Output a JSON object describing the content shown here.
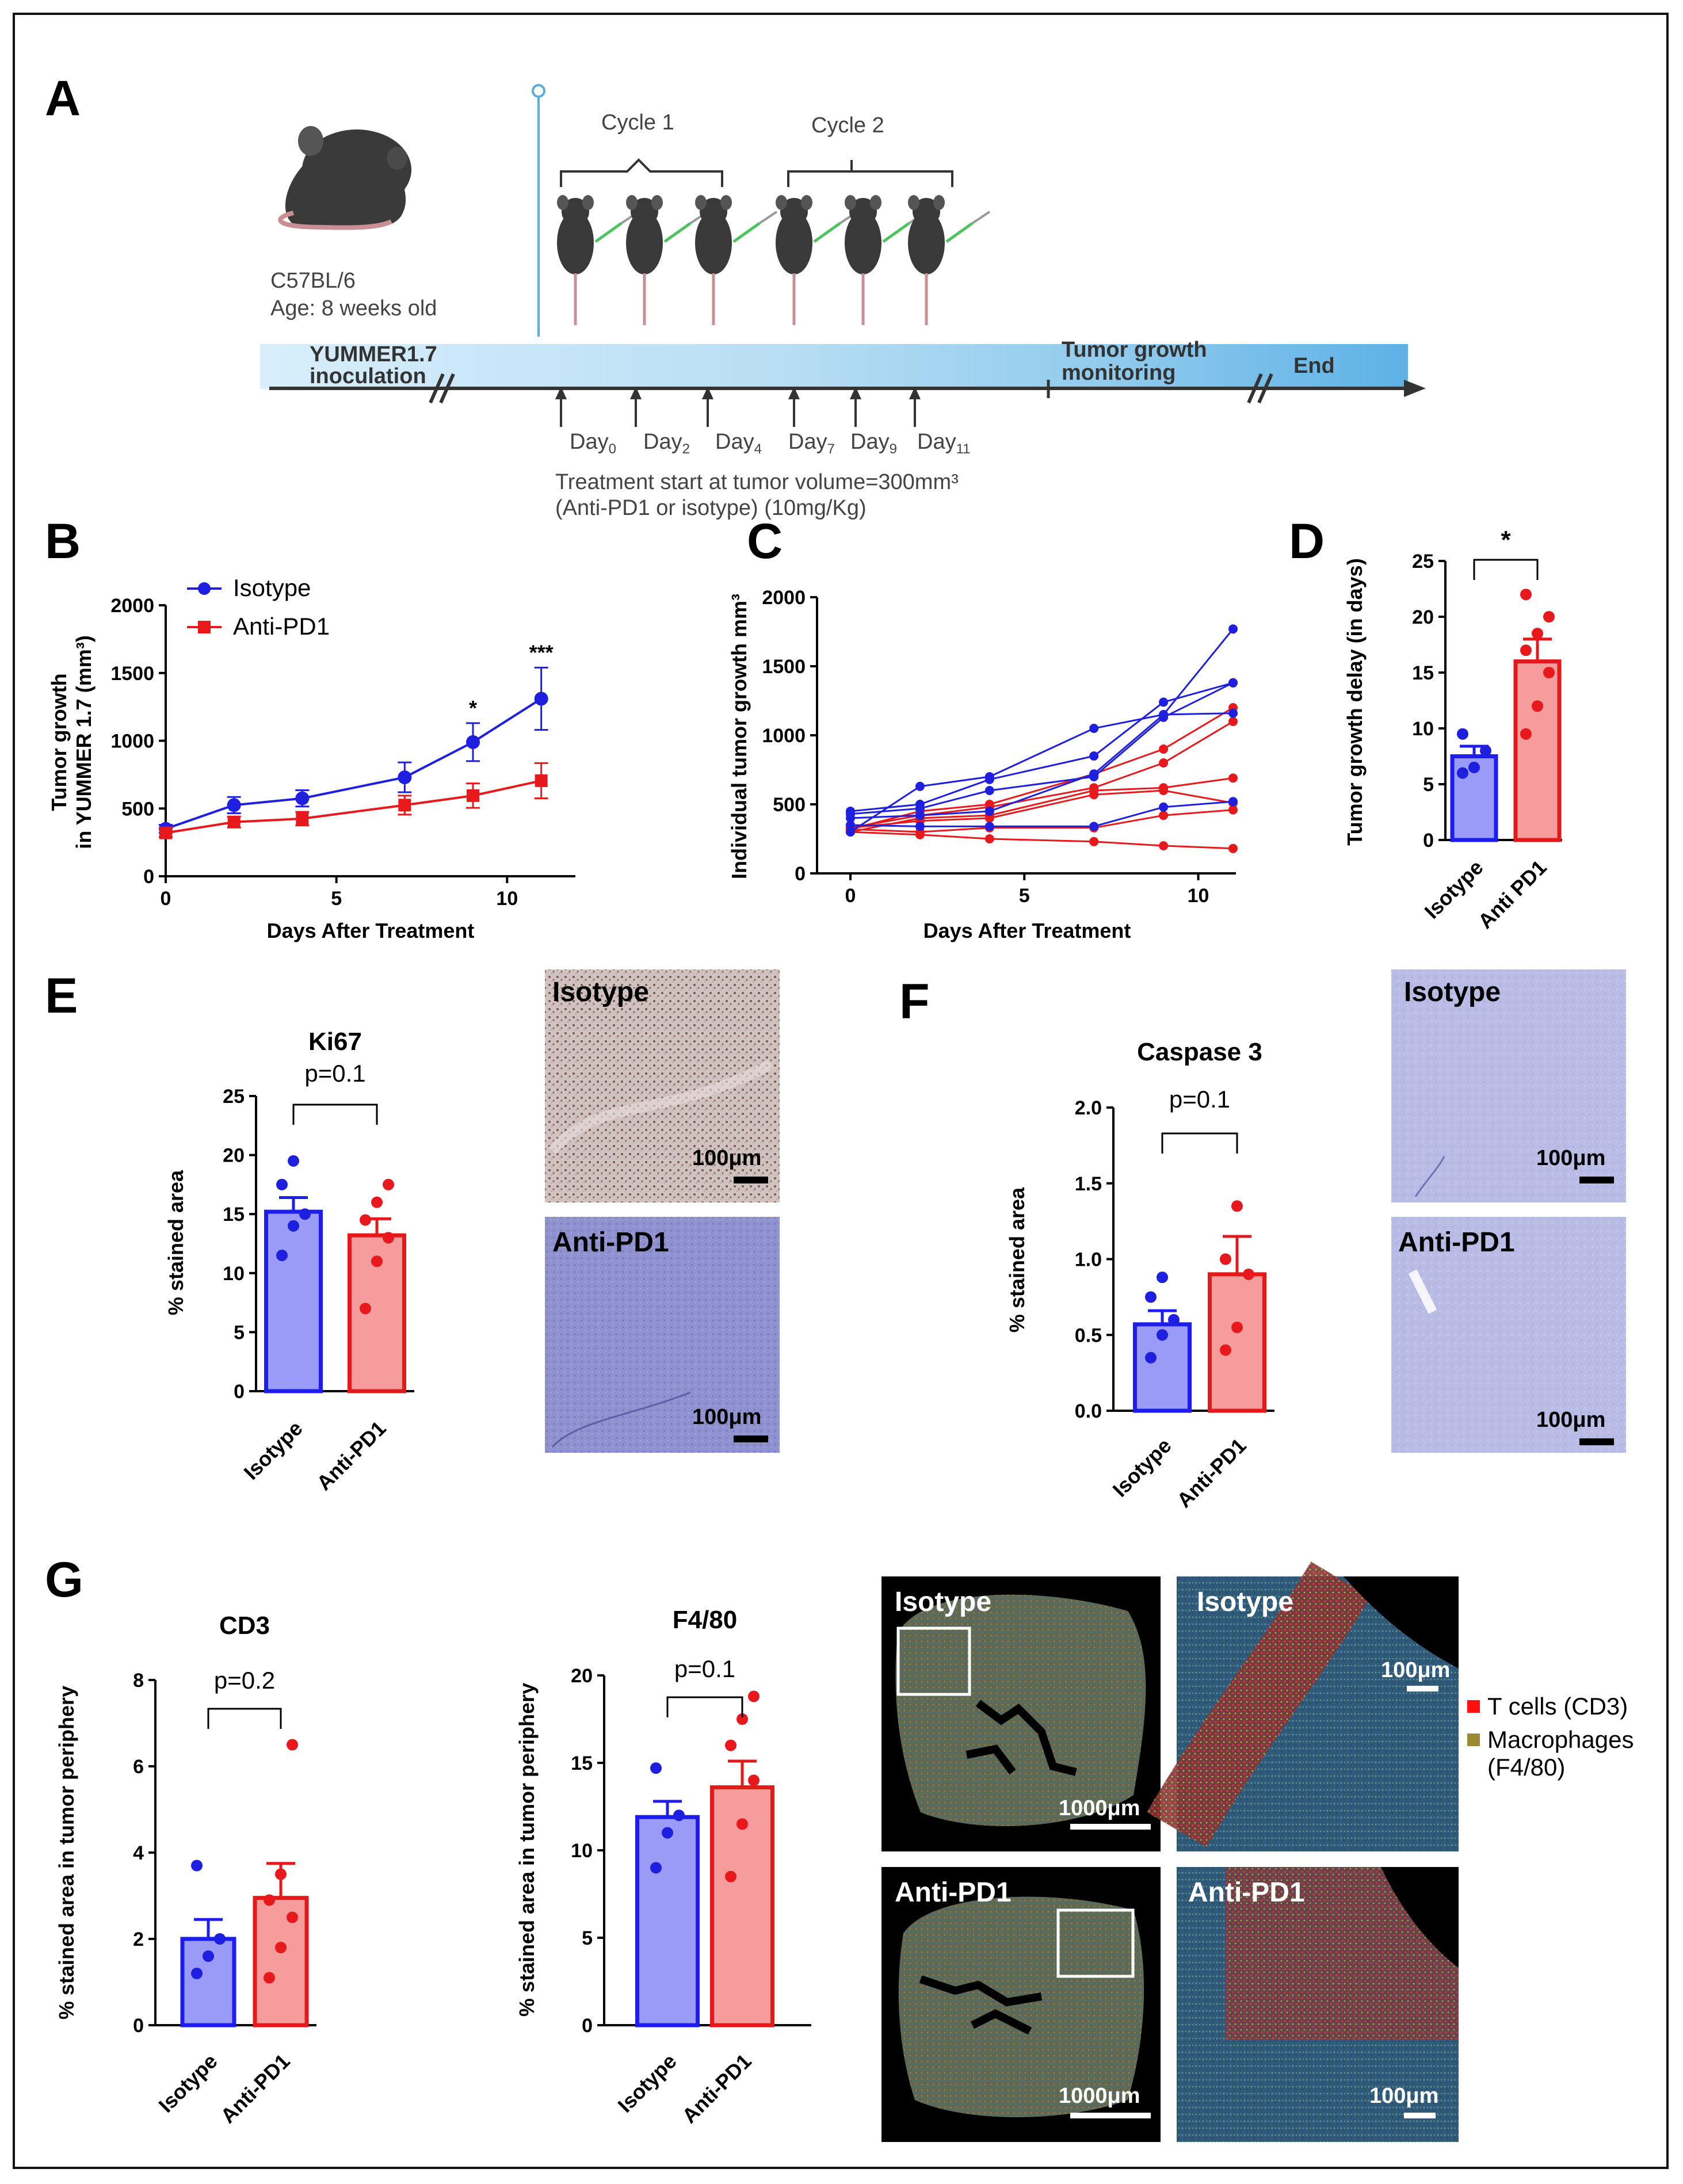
{
  "panel_letters": [
    "A",
    "B",
    "C",
    "D",
    "E",
    "F",
    "G"
  ],
  "panel_a": {
    "strain": "C57BL/6",
    "age": "Age: 8 weeks old",
    "cycle1": "Cycle 1",
    "cycle2": "Cycle 2",
    "inoculation": [
      "YUMMER1.7",
      "inoculation"
    ],
    "monitoring": [
      "Tumor growth",
      "monitoring"
    ],
    "end": "End",
    "days": [
      {
        "base": "Day",
        "sub": "0"
      },
      {
        "base": "Day",
        "sub": "2"
      },
      {
        "base": "Day",
        "sub": "4"
      },
      {
        "base": "Day",
        "sub": "7"
      },
      {
        "base": "Day",
        "sub": "9"
      },
      {
        "base": "Day",
        "sub": "11"
      }
    ],
    "treatment_line1": "Treatment start at tumor volume=300mm³",
    "treatment_line2": "(Anti-PD1 or isotype) (10mg/Kg)"
  },
  "colors": {
    "blue": "#1f1fe0",
    "red": "#e8191c",
    "blue_fill": "#9a9af7",
    "red_fill": "#f79c9c",
    "bar_blue_edge": "#1d1df0",
    "bar_red_edge": "#e41a1a"
  },
  "chart_data": [
    {
      "panel": "B",
      "type": "line",
      "xlabel": "Days After Treatment",
      "ylabel": [
        "Tumor growth",
        "in YUMMER 1.7 (mm³)"
      ],
      "xlim": [
        0,
        12
      ],
      "ylim": [
        0,
        2000
      ],
      "xticks": [
        0,
        5,
        10
      ],
      "yticks": [
        0,
        500,
        1000,
        1500,
        2000
      ],
      "legend": [
        "Isotype",
        "Anti-PD1"
      ],
      "x": [
        0,
        2,
        4,
        7,
        9,
        11
      ],
      "series": [
        {
          "name": "Isotype",
          "values": [
            350,
            525,
            575,
            730,
            990,
            1310
          ],
          "err": [
            30,
            60,
            60,
            110,
            140,
            230
          ]
        },
        {
          "name": "Anti-PD1",
          "values": [
            320,
            400,
            425,
            525,
            595,
            705
          ],
          "err": [
            30,
            40,
            50,
            70,
            90,
            130
          ]
        }
      ],
      "annotations": [
        {
          "x": 9,
          "text": "*"
        },
        {
          "x": 11,
          "text": "***"
        }
      ]
    },
    {
      "panel": "C",
      "type": "line",
      "xlabel": "Days After Treatment",
      "ylabel": "Individual tumor growth mm³",
      "xlim": [
        0,
        11
      ],
      "ylim": [
        0,
        2000
      ],
      "xticks": [
        0,
        5,
        10
      ],
      "yticks": [
        0,
        500,
        1000,
        1500,
        2000
      ],
      "x": [
        0,
        2,
        4,
        7,
        9,
        11
      ],
      "isotype": [
        [
          300,
          630,
          700,
          1050,
          1150,
          1770
        ],
        [
          450,
          500,
          680,
          850,
          1240,
          1380
        ],
        [
          430,
          470,
          600,
          700,
          1130,
          1380
        ],
        [
          400,
          420,
          450,
          720,
          1150,
          1160
        ],
        [
          350,
          340,
          340,
          340,
          480,
          520
        ]
      ],
      "antipd1": [
        [
          320,
          450,
          500,
          720,
          900,
          1200
        ],
        [
          330,
          420,
          480,
          620,
          800,
          1100
        ],
        [
          300,
          400,
          420,
          600,
          620,
          690
        ],
        [
          330,
          380,
          400,
          570,
          600,
          510
        ],
        [
          320,
          300,
          330,
          330,
          420,
          460
        ],
        [
          300,
          280,
          250,
          230,
          200,
          180
        ]
      ]
    },
    {
      "panel": "D",
      "type": "bar",
      "categories": [
        "Isotype",
        "Anti PD1"
      ],
      "values": [
        7.5,
        16.0
      ],
      "sem": [
        0.9,
        2.0
      ],
      "points": [
        [
          6,
          6.5,
          8,
          9.5
        ],
        [
          9.5,
          12,
          15,
          17,
          18.5,
          20,
          22
        ]
      ],
      "ylabel": "Tumor growth delay (in days)",
      "ylim": [
        0,
        25
      ],
      "yticks": [
        0,
        5,
        10,
        15,
        20,
        25
      ],
      "significance": "*"
    },
    {
      "panel": "E",
      "type": "bar",
      "title": "Ki67",
      "pvalue": "p=0.1",
      "categories": [
        "Isotype",
        "Anti-PD1"
      ],
      "values": [
        15.2,
        13.2
      ],
      "sem": [
        1.2,
        1.4
      ],
      "points": [
        [
          11.5,
          14,
          15,
          17.5,
          19.5
        ],
        [
          7,
          11,
          13,
          14.5,
          16,
          17.5
        ]
      ],
      "ylabel": "% stained area",
      "ylim": [
        0,
        25
      ],
      "yticks": [
        0,
        5,
        10,
        15,
        20,
        25
      ]
    },
    {
      "panel": "F",
      "type": "bar",
      "title": "Caspase 3",
      "pvalue": "p=0.1",
      "categories": [
        "Isotype",
        "Anti-PD1"
      ],
      "values": [
        0.57,
        0.9
      ],
      "sem": [
        0.09,
        0.25
      ],
      "points": [
        [
          0.35,
          0.5,
          0.6,
          0.75,
          0.88
        ],
        [
          0.4,
          0.55,
          0.9,
          1.0,
          1.35
        ]
      ],
      "ylabel": "% stained area",
      "ylim": [
        0,
        2.0
      ],
      "yticks": [
        0.0,
        0.5,
        1.0,
        1.5,
        2.0
      ]
    },
    {
      "panel": "G1",
      "type": "bar",
      "title": "CD3",
      "pvalue": "p=0.2",
      "categories": [
        "Isotype",
        "Anti-PD1"
      ],
      "values": [
        2.0,
        2.95
      ],
      "sem": [
        0.45,
        0.8
      ],
      "points": [
        [
          1.2,
          1.6,
          2.0,
          3.7
        ],
        [
          1.1,
          1.8,
          2.5,
          2.9,
          3.5,
          6.5
        ]
      ],
      "ylabel": "% stained area in tumor periphery",
      "ylim": [
        0,
        8
      ],
      "yticks": [
        0,
        2,
        4,
        6,
        8
      ]
    },
    {
      "panel": "G2",
      "type": "bar",
      "title": "F4/80",
      "pvalue": "p=0.1",
      "categories": [
        "Isotype",
        "Anti-PD1"
      ],
      "values": [
        11.9,
        13.6
      ],
      "sem": [
        0.9,
        1.5
      ],
      "points": [
        [
          9,
          11,
          12,
          14.7
        ],
        [
          8.5,
          11.5,
          14,
          16,
          17.5,
          18.8
        ]
      ],
      "ylabel": "% stained area in tumor periphery",
      "ylim": [
        0,
        20
      ],
      "yticks": [
        0,
        5,
        10,
        15,
        20
      ]
    }
  ],
  "images": {
    "e_top_label": "Isotype",
    "e_bottom_label": "Anti-PD1",
    "f_top_label": "Isotype",
    "f_bottom_label": "Anti-PD1",
    "g_tl_label": "Isotype",
    "g_tr_label": "Isotype",
    "g_bl_label": "Anti-PD1",
    "g_br_label": "Anti-PD1",
    "scale_100": "100μm",
    "scale_1000": "1000μm"
  },
  "legend_g": {
    "t_cells": "T cells (CD3)",
    "macrophages_1": "Macrophages",
    "macrophages_2": "(F4/80)",
    "t_color": "#ff1010",
    "m_color": "#9a8a36"
  }
}
